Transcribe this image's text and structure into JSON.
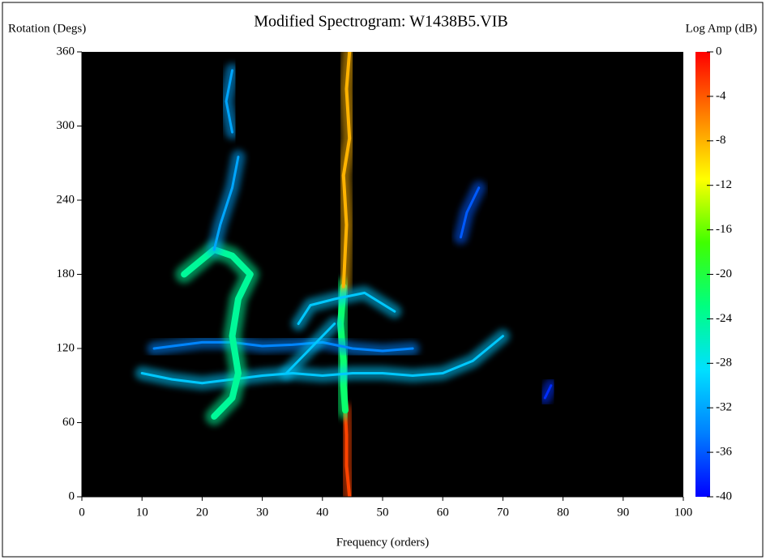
{
  "chart_data": {
    "type": "spectrogram",
    "title": "Modified Spectrogram: W1438B5.VIB",
    "xlabel": "Frequency (orders)",
    "ylabel": "Rotation (Degs)",
    "colorbar_label": "Log Amp (dB)",
    "xlim": [
      0,
      100
    ],
    "xticks": [
      0,
      10,
      20,
      30,
      40,
      50,
      60,
      70,
      80,
      90,
      100
    ],
    "ylim": [
      0,
      360
    ],
    "yticks": [
      0,
      60,
      120,
      180,
      240,
      300,
      360
    ],
    "clim": [
      -40,
      0
    ],
    "cticks": [
      0,
      -4,
      -8,
      -12,
      -16,
      -20,
      -24,
      -28,
      -32,
      -36,
      -40
    ],
    "background": "#000000",
    "colormap": [
      "#0000ff",
      "#0080ff",
      "#00e0ff",
      "#00ff80",
      "#40ff00",
      "#ffff00",
      "#ff8000",
      "#ff0000"
    ],
    "traces": [
      {
        "x": [
          44.5,
          44,
          44,
          43.8
        ],
        "y": [
          0,
          25,
          50,
          70
        ],
        "level": -3
      },
      {
        "x": [
          43.8,
          43.5,
          43.5,
          43,
          43.5
        ],
        "y": [
          70,
          90,
          110,
          140,
          170
        ],
        "level": -22
      },
      {
        "x": [
          43.5,
          44,
          43.5,
          44.5,
          44,
          44.5
        ],
        "y": [
          170,
          220,
          260,
          290,
          330,
          360
        ],
        "level": -8
      },
      {
        "x": [
          10,
          15,
          20,
          25,
          30,
          35,
          40,
          45,
          50,
          55,
          60,
          65,
          70
        ],
        "y": [
          100,
          95,
          92,
          95,
          98,
          100,
          98,
          100,
          100,
          98,
          100,
          110,
          130
        ],
        "level": -30
      },
      {
        "x": [
          12,
          20,
          25,
          30,
          35,
          40,
          45,
          50,
          55
        ],
        "y": [
          120,
          125,
          125,
          122,
          123,
          125,
          120,
          118,
          120
        ],
        "level": -34
      },
      {
        "x": [
          22,
          25,
          26,
          25,
          26,
          28,
          25,
          22,
          17
        ],
        "y": [
          65,
          80,
          100,
          130,
          160,
          180,
          195,
          200,
          180
        ],
        "level": -24
      },
      {
        "x": [
          22,
          23,
          25,
          26
        ],
        "y": [
          200,
          220,
          250,
          275
        ],
        "level": -32
      },
      {
        "x": [
          25,
          24,
          25
        ],
        "y": [
          295,
          320,
          345
        ],
        "level": -32
      },
      {
        "x": [
          34,
          36,
          38,
          40,
          42
        ],
        "y": [
          100,
          110,
          120,
          130,
          140
        ],
        "level": -30
      },
      {
        "x": [
          36,
          38,
          42,
          47,
          52
        ],
        "y": [
          140,
          155,
          160,
          165,
          150
        ],
        "level": -30
      },
      {
        "x": [
          63,
          64,
          66
        ],
        "y": [
          210,
          230,
          250
        ],
        "level": -36
      },
      {
        "x": [
          77,
          78
        ],
        "y": [
          80,
          90
        ],
        "level": -38
      }
    ]
  }
}
